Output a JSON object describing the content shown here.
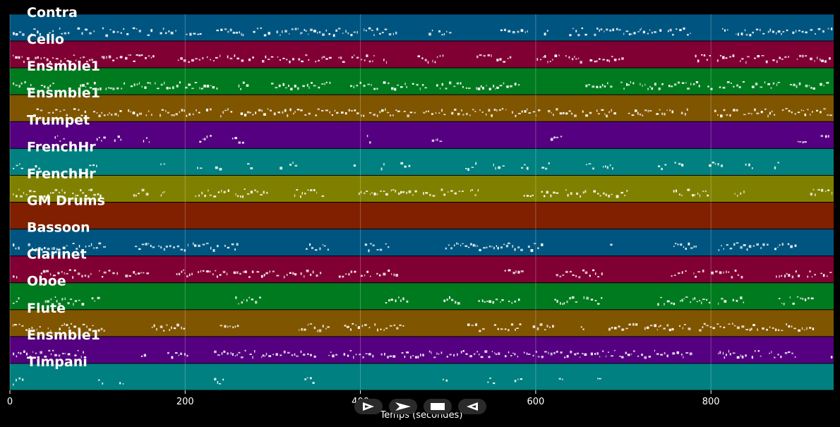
{
  "chart_data": {
    "type": "piano-roll",
    "xlabel": "Temps (secondes)",
    "xlim": [
      0,
      940
    ],
    "xticks": [
      0,
      200,
      400,
      600,
      800
    ],
    "grid": true,
    "tracks": [
      {
        "name": "Contra",
        "color": "#005580",
        "density": 0.85,
        "sparse": false
      },
      {
        "name": "Cello",
        "color": "#800033",
        "density": 0.85,
        "sparse": false
      },
      {
        "name": "Ensmble1",
        "color": "#007a1f",
        "density": 0.85,
        "sparse": false
      },
      {
        "name": "Ensmble1",
        "color": "#805500",
        "density": 0.85,
        "sparse": false
      },
      {
        "name": "Trumpet",
        "color": "#550080",
        "density": 0.3,
        "sparse": true
      },
      {
        "name": "FrenchHr",
        "color": "#008080",
        "density": 0.5,
        "sparse": true
      },
      {
        "name": "FrenchHr",
        "color": "#808000",
        "density": 0.65,
        "sparse": false
      },
      {
        "name": "GM Drums",
        "color": "#802000",
        "density": 0,
        "sparse": true
      },
      {
        "name": "Bassoon",
        "color": "#005580",
        "density": 0.6,
        "sparse": false
      },
      {
        "name": "Clarinet",
        "color": "#800033",
        "density": 0.55,
        "sparse": false
      },
      {
        "name": "Oboe",
        "color": "#007a1f",
        "density": 0.6,
        "sparse": false
      },
      {
        "name": "Flute",
        "color": "#805500",
        "density": 0.6,
        "sparse": false
      },
      {
        "name": "Ensmble1",
        "color": "#550080",
        "density": 0.85,
        "sparse": false
      },
      {
        "name": "Timpani",
        "color": "#008080",
        "density": 0.35,
        "sparse": true
      }
    ]
  },
  "controls": [
    {
      "name": "play-icon"
    },
    {
      "name": "fast-forward-icon"
    },
    {
      "name": "stop-icon"
    },
    {
      "name": "rewind-icon"
    }
  ]
}
